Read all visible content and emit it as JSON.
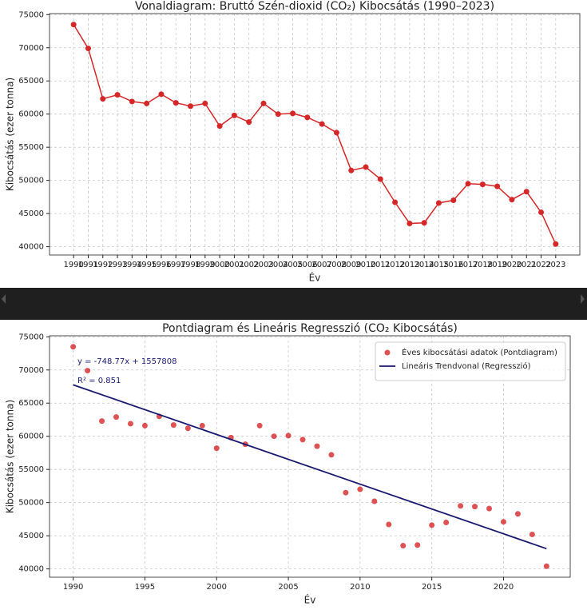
{
  "chart_data": [
    {
      "type": "line",
      "title": "Vonaldiagram: Bruttó Szén-dioxid (CO₂) Kibocsátás (1990–2023)",
      "xlabel": "Év",
      "ylabel": "Kibocsátás (ezer tonna)",
      "color": "#d62728",
      "grid": true,
      "x": [
        1990,
        1991,
        1992,
        1993,
        1994,
        1995,
        1996,
        1997,
        1998,
        1999,
        2000,
        2001,
        2002,
        2003,
        2004,
        2005,
        2006,
        2007,
        2008,
        2009,
        2010,
        2011,
        2012,
        2013,
        2014,
        2015,
        2016,
        2017,
        2018,
        2019,
        2020,
        2021,
        2022,
        2023
      ],
      "values": [
        73500,
        69900,
        62300,
        62900,
        61900,
        61600,
        63000,
        61700,
        61200,
        61600,
        58200,
        59800,
        58800,
        61600,
        60000,
        60100,
        59500,
        58500,
        57200,
        51500,
        52000,
        50200,
        46700,
        43500,
        43600,
        46600,
        47000,
        49500,
        49400,
        49100,
        47100,
        48300,
        45200,
        40400
      ],
      "xlim": [
        1988.35,
        2024.65
      ],
      "xticks": [
        1990,
        1991,
        1992,
        1993,
        1994,
        1995,
        1996,
        1997,
        1998,
        1999,
        2000,
        2001,
        2002,
        2003,
        2004,
        2005,
        2006,
        2007,
        2008,
        2009,
        2010,
        2011,
        2012,
        2013,
        2014,
        2015,
        2016,
        2017,
        2018,
        2019,
        2020,
        2021,
        2022,
        2023
      ],
      "ylim": [
        38745,
        75155
      ],
      "yticks": [
        40000,
        45000,
        50000,
        55000,
        60000,
        65000,
        70000,
        75000
      ]
    },
    {
      "type": "scatter",
      "title": "Pontdiagram és Lineáris Regresszió (CO₂ Kibocsátás)",
      "xlabel": "Év",
      "ylabel": "Kibocsátás (ezer tonna)",
      "grid": true,
      "legend": "upper-right",
      "annotations": [
        "y = -748.77x + 1557808",
        "R² = 0.851"
      ],
      "series": [
        {
          "name": "Éves kibocsátási adatok (Pontdiagram)",
          "type": "scatter",
          "color": "#d62728",
          "x": [
            1990,
            1991,
            1992,
            1993,
            1994,
            1995,
            1996,
            1997,
            1998,
            1999,
            2000,
            2001,
            2002,
            2003,
            2004,
            2005,
            2006,
            2007,
            2008,
            2009,
            2010,
            2011,
            2012,
            2013,
            2014,
            2015,
            2016,
            2017,
            2018,
            2019,
            2020,
            2021,
            2022,
            2023
          ],
          "values": [
            73500,
            69900,
            62300,
            62900,
            61900,
            61600,
            63000,
            61700,
            61200,
            61600,
            58200,
            59800,
            58800,
            61600,
            60000,
            60100,
            59500,
            58500,
            57200,
            51500,
            52000,
            50200,
            46700,
            43500,
            43600,
            46600,
            47000,
            49500,
            49400,
            49100,
            47100,
            48300,
            45200,
            40400
          ]
        },
        {
          "name": "Lineáris Trendvonal (Regresszió)",
          "type": "line",
          "color": "#191970",
          "x": [
            1990,
            2023
          ],
          "values": [
            67756,
            43046
          ]
        }
      ],
      "xlim": [
        1988.35,
        2024.65
      ],
      "xticks": [
        1990,
        1995,
        2000,
        2005,
        2010,
        2015,
        2020
      ],
      "ylim": [
        38745,
        75155
      ],
      "yticks": [
        40000,
        45000,
        50000,
        55000,
        60000,
        65000,
        70000,
        75000
      ]
    }
  ]
}
